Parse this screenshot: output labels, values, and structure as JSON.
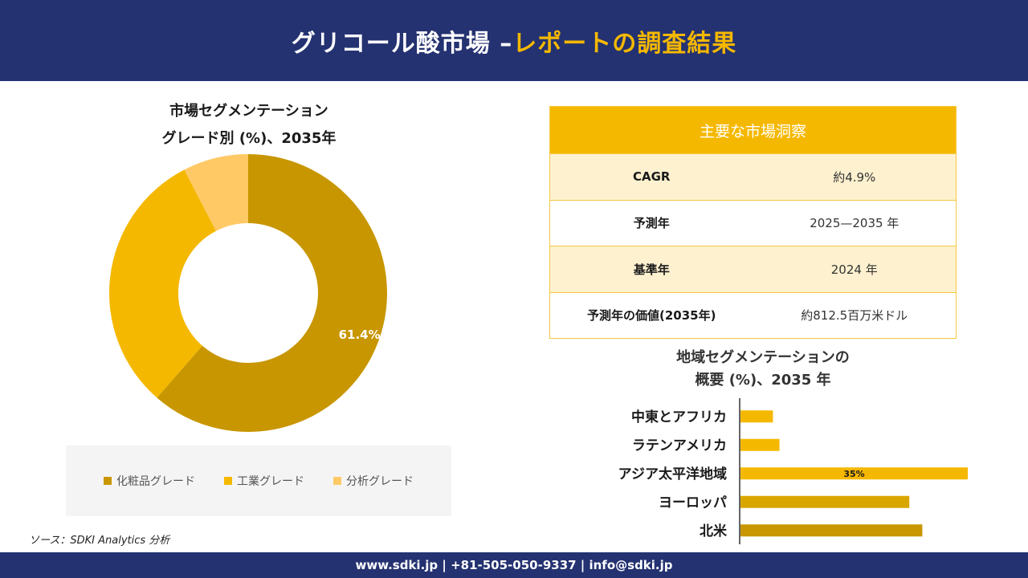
{
  "header": {
    "title_main": "グリコール酸市場 –",
    "title_accent": "レポートの調査結果"
  },
  "donut": {
    "title_line1": "市場セグメンテーション",
    "title_line2": "グレード別 (%)、2035年"
  },
  "insights": {
    "heading": "主要な市場洞察",
    "rows": [
      {
        "key": "CAGR",
        "value": "約4.9%"
      },
      {
        "key": "予測年",
        "value": "2025—2035 年"
      },
      {
        "key": "基準年",
        "value": "2024 年"
      },
      {
        "key": "予測年の価値(2035年)",
        "value": "約812.5百万米ドル"
      }
    ]
  },
  "regional": {
    "title_line1": "地域セグメンテーションの",
    "title_line2": "概要 (%)、2035 年"
  },
  "source": "ソース：SDKI Analytics 分析",
  "footer": {
    "contact": "www.sdki.jp | +81-505-050-9337 | info@sdki.jp"
  },
  "colors": {
    "navy": "#243271",
    "gold": "#f5b800",
    "dark_gold": "#c89600",
    "light_gold": "#ffc966"
  },
  "chart_data": [
    {
      "type": "pie",
      "categories": [
        "化粧品グレード",
        "工業グレード",
        "分析グレード"
      ],
      "values": [
        61.4,
        31.0,
        7.6
      ],
      "colors": [
        "#c89600",
        "#f5b800",
        "#ffc966"
      ],
      "data_labels": [
        "61.4%",
        "",
        ""
      ],
      "legend": "bottom"
    },
    {
      "type": "bar",
      "orientation": "horizontal",
      "categories": [
        "中東とアフリカ",
        "ラテンアメリカ",
        "アジア太平洋地域",
        "ヨーロッパ",
        "北米"
      ],
      "values": [
        5,
        6,
        35,
        26,
        28
      ],
      "colors": [
        "#f5b800",
        "#f5b800",
        "#f5b800",
        "#d9a600",
        "#c89600"
      ],
      "data_labels": [
        "",
        "",
        "35%",
        "",
        ""
      ],
      "xlim": [
        0,
        35
      ]
    }
  ]
}
